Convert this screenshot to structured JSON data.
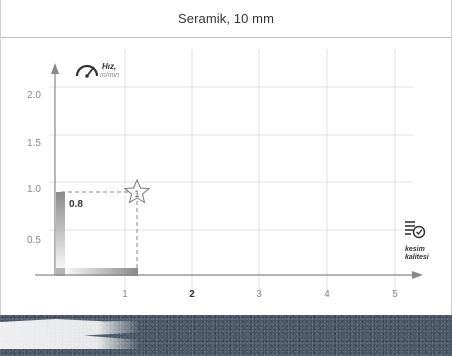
{
  "header": {
    "title": "Seramik, 10 mm"
  },
  "y_axis": {
    "unit_title": "Hız,",
    "unit_sub": "m/min",
    "icon": "speedometer-icon",
    "ticks": [
      "2.0",
      "1.5",
      "1.0",
      "0.5"
    ]
  },
  "x_axis": {
    "icon": "cut-quality-icon",
    "label_line1": "kesim",
    "label_line2": "kalitesi",
    "ticks": [
      "1",
      "2",
      "3",
      "4",
      "5"
    ],
    "selected_tick": "2"
  },
  "marker": {
    "label": "1",
    "value_label": "0.8",
    "icon": "star-icon"
  },
  "chart_data": {
    "type": "area",
    "x": [
      1,
      2,
      3,
      4,
      5
    ],
    "y_ticks": [
      0.5,
      1.0,
      1.5,
      2.0
    ],
    "ylim": [
      0,
      2.2
    ],
    "xlim": [
      0,
      5
    ],
    "grid": true,
    "selected_quality": 2,
    "point": {
      "x": 1,
      "y": 0.8,
      "label": "0.8"
    }
  }
}
